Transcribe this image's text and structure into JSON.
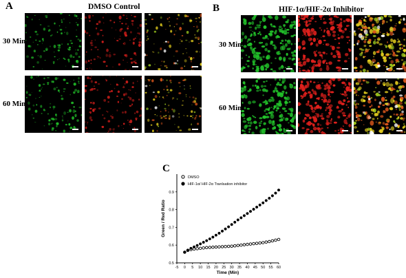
{
  "panels": {
    "A": {
      "letter": "A",
      "title": "DMSO Control",
      "rows": [
        "30 Min",
        "60 Min"
      ]
    },
    "B": {
      "letter": "B",
      "title": "HIF-1α/HIF-2α Inhibitor",
      "rows": [
        "30 Min",
        "60 Min"
      ]
    },
    "C": {
      "letter": "C"
    }
  },
  "colors": {
    "green": "#22c32a",
    "red": "#e0201c",
    "merge": "#d6c81c"
  },
  "chart_data": {
    "type": "scatter",
    "xlabel": "Time (Min)",
    "ylabel": "Green / Red Ratio",
    "xlim": [
      -5,
      60
    ],
    "ylim": [
      0.5,
      1.0
    ],
    "xticks": [
      "-5",
      "0",
      "5",
      "10",
      "15",
      "20",
      "25",
      "30",
      "35",
      "40",
      "45",
      "50",
      "55",
      "60"
    ],
    "yticks": [
      "0.5",
      "0.6",
      "0.7",
      "0.8",
      "0.9"
    ],
    "legend_position": "top-left",
    "series": [
      {
        "name": "DMSO",
        "marker": "open-circle",
        "x": [
          0,
          2,
          4,
          6,
          8,
          10,
          12,
          14,
          16,
          18,
          20,
          22,
          24,
          26,
          28,
          30,
          32,
          34,
          36,
          38,
          40,
          42,
          44,
          46,
          48,
          50,
          52,
          54,
          56,
          58,
          60
        ],
        "y": [
          0.56,
          0.57,
          0.575,
          0.578,
          0.58,
          0.582,
          0.584,
          0.586,
          0.587,
          0.588,
          0.589,
          0.59,
          0.591,
          0.592,
          0.593,
          0.594,
          0.596,
          0.598,
          0.6,
          0.602,
          0.604,
          0.606,
          0.608,
          0.61,
          0.612,
          0.614,
          0.617,
          0.62,
          0.624,
          0.628,
          0.632
        ]
      },
      {
        "name": "HIF-1α/ HIF-2α Tranlsation inhibitor",
        "marker": "filled-circle",
        "x": [
          0,
          2,
          4,
          6,
          8,
          10,
          12,
          14,
          16,
          18,
          20,
          22,
          24,
          26,
          28,
          30,
          32,
          34,
          36,
          38,
          40,
          42,
          44,
          46,
          48,
          50,
          52,
          54,
          56,
          58,
          60
        ],
        "y": [
          0.56,
          0.572,
          0.582,
          0.59,
          0.598,
          0.607,
          0.616,
          0.625,
          0.635,
          0.645,
          0.656,
          0.667,
          0.679,
          0.691,
          0.703,
          0.716,
          0.729,
          0.742,
          0.754,
          0.766,
          0.778,
          0.79,
          0.802,
          0.814,
          0.826,
          0.838,
          0.851,
          0.864,
          0.878,
          0.893,
          0.91
        ]
      }
    ]
  }
}
